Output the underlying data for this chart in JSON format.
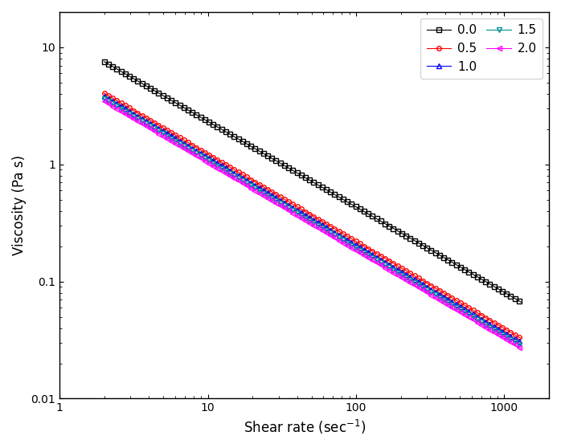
{
  "series": [
    {
      "label": "0.0",
      "color": "#000000",
      "marker": "s",
      "K": 12.5,
      "n": -0.73
    },
    {
      "label": "0.5",
      "color": "#ff0000",
      "marker": "o",
      "K": 6.8,
      "n": -0.745
    },
    {
      "label": "1.0",
      "color": "#0000ff",
      "marker": "^",
      "K": 6.4,
      "n": -0.748
    },
    {
      "label": "1.5",
      "color": "#009090",
      "marker": "v",
      "K": 6.1,
      "n": -0.75
    },
    {
      "label": "2.0",
      "color": "#ff00ff",
      "marker": "<",
      "K": 5.8,
      "n": -0.75
    }
  ],
  "xlabel": "Shear rate (sec$^{-1}$)",
  "ylabel": "Viscosity (Pa s)",
  "xlim": [
    1,
    2000
  ],
  "ylim": [
    0.01,
    20
  ],
  "x_start": 2.0,
  "x_end": 1300,
  "n_points": 200,
  "legend_loc": "upper right",
  "legend_ncol": 2,
  "background_color": "#ffffff",
  "axis_color": "#000000",
  "markerfacecolor": "none",
  "linewidth": 0.8,
  "markersize": 4,
  "markevery": 2
}
